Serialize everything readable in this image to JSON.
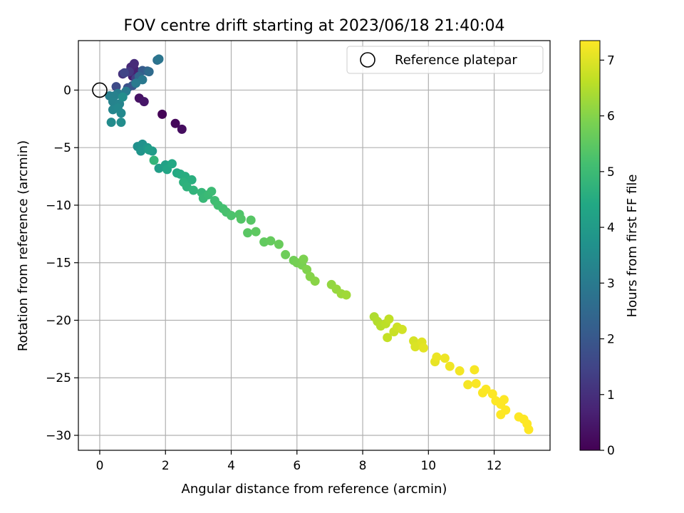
{
  "chart_data": {
    "type": "scatter",
    "title": "FOV centre drift starting at 2023/06/18 21:40:04",
    "xlabel": "Angular distance from reference (arcmin)",
    "ylabel": "Rotation from reference (arcmin)",
    "xlim": [
      -0.65,
      13.7
    ],
    "ylim": [
      -31.3,
      4.3
    ],
    "xticks": [
      0,
      2,
      4,
      6,
      8,
      10,
      12
    ],
    "yticks": [
      0,
      -5,
      -10,
      -15,
      -20,
      -25,
      -30
    ],
    "grid": true,
    "legend": {
      "placement": "top-right",
      "entries": [
        "Reference platepar"
      ]
    },
    "reference_point": {
      "x": 0,
      "y": 0
    },
    "colorbar": {
      "label": "Hours from first FF file",
      "colormap": "viridis",
      "range": [
        0,
        7.35
      ],
      "ticks": [
        0,
        1,
        2,
        3,
        4,
        5,
        6,
        7
      ]
    },
    "points": [
      {
        "x": 1.9,
        "y": -2.1,
        "c": 0.05
      },
      {
        "x": 2.3,
        "y": -2.9,
        "c": 0.15
      },
      {
        "x": 2.5,
        "y": -3.4,
        "c": 0.25
      },
      {
        "x": 1.2,
        "y": -0.7,
        "c": 0.35
      },
      {
        "x": 1.35,
        "y": -1.0,
        "c": 0.45
      },
      {
        "x": 1.0,
        "y": 1.2,
        "c": 0.6
      },
      {
        "x": 1.05,
        "y": 1.8,
        "c": 0.7
      },
      {
        "x": 0.95,
        "y": 2.0,
        "c": 0.8
      },
      {
        "x": 1.05,
        "y": 2.3,
        "c": 0.9
      },
      {
        "x": 0.7,
        "y": 1.4,
        "c": 1.05
      },
      {
        "x": 0.9,
        "y": 1.6,
        "c": 1.2
      },
      {
        "x": 1.1,
        "y": 1.0,
        "c": 1.35
      },
      {
        "x": 0.75,
        "y": 1.5,
        "c": 1.5
      },
      {
        "x": 0.5,
        "y": 0.3,
        "c": 1.65
      },
      {
        "x": 0.85,
        "y": 0.2,
        "c": 1.8
      },
      {
        "x": 1.0,
        "y": 0.4,
        "c": 1.95
      },
      {
        "x": 1.3,
        "y": 1.7,
        "c": 2.1
      },
      {
        "x": 1.45,
        "y": 1.65,
        "c": 2.25
      },
      {
        "x": 1.2,
        "y": 1.2,
        "c": 2.4
      },
      {
        "x": 1.5,
        "y": 1.6,
        "c": 2.55
      },
      {
        "x": 1.75,
        "y": 2.6,
        "c": 2.7
      },
      {
        "x": 1.8,
        "y": 2.7,
        "c": 2.85
      },
      {
        "x": 1.3,
        "y": 0.9,
        "c": 2.95
      },
      {
        "x": 1.1,
        "y": 0.6,
        "c": 3.0
      },
      {
        "x": 0.8,
        "y": -0.1,
        "c": 3.05
      },
      {
        "x": 0.55,
        "y": -0.3,
        "c": 3.1
      },
      {
        "x": 0.3,
        "y": -0.5,
        "c": 3.15
      },
      {
        "x": 0.45,
        "y": -0.5,
        "c": 3.2
      },
      {
        "x": 0.4,
        "y": -1.0,
        "c": 3.25
      },
      {
        "x": 0.6,
        "y": -1.2,
        "c": 3.3
      },
      {
        "x": 0.4,
        "y": -1.7,
        "c": 3.35
      },
      {
        "x": 0.55,
        "y": -1.55,
        "c": 3.4
      },
      {
        "x": 0.65,
        "y": -2.0,
        "c": 3.45
      },
      {
        "x": 0.35,
        "y": -2.8,
        "c": 3.5
      },
      {
        "x": 0.65,
        "y": -2.8,
        "c": 3.55
      },
      {
        "x": 0.7,
        "y": -0.6,
        "c": 3.6
      },
      {
        "x": 1.15,
        "y": -4.9,
        "c": 3.65
      },
      {
        "x": 1.3,
        "y": -4.7,
        "c": 3.7
      },
      {
        "x": 1.25,
        "y": -5.3,
        "c": 3.8
      },
      {
        "x": 1.45,
        "y": -5.0,
        "c": 3.9
      },
      {
        "x": 1.6,
        "y": -5.3,
        "c": 4.0
      },
      {
        "x": 1.5,
        "y": -5.2,
        "c": 4.05
      },
      {
        "x": 1.8,
        "y": -6.8,
        "c": 4.1
      },
      {
        "x": 2.0,
        "y": -6.5,
        "c": 4.2
      },
      {
        "x": 2.05,
        "y": -6.9,
        "c": 4.3
      },
      {
        "x": 2.2,
        "y": -6.4,
        "c": 4.4
      },
      {
        "x": 2.35,
        "y": -7.2,
        "c": 4.45
      },
      {
        "x": 2.45,
        "y": -7.3,
        "c": 4.5
      },
      {
        "x": 2.6,
        "y": -7.5,
        "c": 4.55
      },
      {
        "x": 2.8,
        "y": -7.8,
        "c": 4.6
      },
      {
        "x": 2.55,
        "y": -8.0,
        "c": 4.65
      },
      {
        "x": 2.65,
        "y": -8.4,
        "c": 4.7
      },
      {
        "x": 2.85,
        "y": -8.7,
        "c": 4.75
      },
      {
        "x": 1.65,
        "y": -6.1,
        "c": 4.8
      },
      {
        "x": 3.1,
        "y": -8.9,
        "c": 4.85
      },
      {
        "x": 3.15,
        "y": -9.4,
        "c": 4.9
      },
      {
        "x": 3.3,
        "y": -9.1,
        "c": 4.95
      },
      {
        "x": 3.4,
        "y": -8.8,
        "c": 5.0
      },
      {
        "x": 3.5,
        "y": -9.6,
        "c": 5.05
      },
      {
        "x": 3.6,
        "y": -10.0,
        "c": 5.1
      },
      {
        "x": 3.75,
        "y": -10.3,
        "c": 5.15
      },
      {
        "x": 3.85,
        "y": -10.6,
        "c": 5.2
      },
      {
        "x": 4.0,
        "y": -10.9,
        "c": 5.25
      },
      {
        "x": 4.25,
        "y": -10.8,
        "c": 5.3
      },
      {
        "x": 4.3,
        "y": -11.2,
        "c": 5.35
      },
      {
        "x": 4.6,
        "y": -11.3,
        "c": 5.4
      },
      {
        "x": 4.5,
        "y": -12.4,
        "c": 5.45
      },
      {
        "x": 4.75,
        "y": -12.3,
        "c": 5.5
      },
      {
        "x": 5.0,
        "y": -13.2,
        "c": 5.55
      },
      {
        "x": 5.2,
        "y": -13.1,
        "c": 5.6
      },
      {
        "x": 5.45,
        "y": -13.4,
        "c": 5.65
      },
      {
        "x": 5.65,
        "y": -14.3,
        "c": 5.7
      },
      {
        "x": 5.9,
        "y": -14.8,
        "c": 5.75
      },
      {
        "x": 6.0,
        "y": -15.0,
        "c": 5.8
      },
      {
        "x": 6.15,
        "y": -15.2,
        "c": 5.85
      },
      {
        "x": 6.2,
        "y": -14.7,
        "c": 5.9
      },
      {
        "x": 6.3,
        "y": -15.6,
        "c": 5.95
      },
      {
        "x": 6.4,
        "y": -16.2,
        "c": 6.0
      },
      {
        "x": 6.55,
        "y": -16.6,
        "c": 6.05
      },
      {
        "x": 7.05,
        "y": -16.9,
        "c": 6.15
      },
      {
        "x": 7.2,
        "y": -17.3,
        "c": 6.2
      },
      {
        "x": 7.35,
        "y": -17.7,
        "c": 6.25
      },
      {
        "x": 7.5,
        "y": -17.8,
        "c": 6.3
      },
      {
        "x": 8.35,
        "y": -19.7,
        "c": 6.45
      },
      {
        "x": 8.45,
        "y": -20.1,
        "c": 6.5
      },
      {
        "x": 8.55,
        "y": -20.5,
        "c": 6.55
      },
      {
        "x": 8.7,
        "y": -20.3,
        "c": 6.6
      },
      {
        "x": 8.8,
        "y": -19.9,
        "c": 6.65
      },
      {
        "x": 8.75,
        "y": -21.5,
        "c": 6.7
      },
      {
        "x": 8.95,
        "y": -21.0,
        "c": 6.75
      },
      {
        "x": 9.05,
        "y": -20.6,
        "c": 6.8
      },
      {
        "x": 9.2,
        "y": -20.8,
        "c": 6.85
      },
      {
        "x": 9.55,
        "y": -21.8,
        "c": 6.9
      },
      {
        "x": 9.6,
        "y": -22.3,
        "c": 6.95
      },
      {
        "x": 9.8,
        "y": -21.9,
        "c": 7.0
      },
      {
        "x": 9.85,
        "y": -22.4,
        "c": 7.05
      },
      {
        "x": 10.2,
        "y": -23.6,
        "c": 7.1
      },
      {
        "x": 10.25,
        "y": -23.2,
        "c": 7.15
      },
      {
        "x": 10.5,
        "y": -23.3,
        "c": 7.18
      },
      {
        "x": 10.65,
        "y": -24.0,
        "c": 7.2
      },
      {
        "x": 10.95,
        "y": -24.4,
        "c": 7.23
      },
      {
        "x": 11.2,
        "y": -25.6,
        "c": 7.26
      },
      {
        "x": 11.4,
        "y": -24.3,
        "c": 7.28
      },
      {
        "x": 11.45,
        "y": -25.5,
        "c": 7.3
      },
      {
        "x": 11.65,
        "y": -26.3,
        "c": 7.32
      },
      {
        "x": 11.75,
        "y": -26.0,
        "c": 7.33
      },
      {
        "x": 11.95,
        "y": -26.4,
        "c": 7.34
      },
      {
        "x": 12.05,
        "y": -27.0,
        "c": 7.34
      },
      {
        "x": 12.2,
        "y": -27.3,
        "c": 7.35
      },
      {
        "x": 12.3,
        "y": -26.9,
        "c": 7.35
      },
      {
        "x": 12.2,
        "y": -28.2,
        "c": 7.35
      },
      {
        "x": 12.35,
        "y": -27.8,
        "c": 7.35
      },
      {
        "x": 12.75,
        "y": -28.4,
        "c": 7.35
      },
      {
        "x": 12.9,
        "y": -28.6,
        "c": 7.35
      },
      {
        "x": 13.0,
        "y": -29.0,
        "c": 7.35
      },
      {
        "x": 13.05,
        "y": -29.5,
        "c": 7.35
      }
    ]
  }
}
